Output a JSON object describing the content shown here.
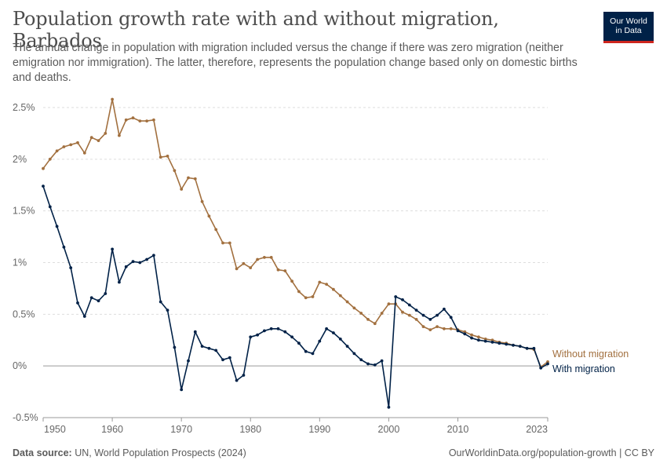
{
  "header": {
    "title": "Population growth rate with and without migration, Barbados",
    "subtitle": "The annual change in population with migration included versus the change if there was zero migration (neither emigration nor immigration). The latter, therefore, represents the population change based only on domestic births and deaths."
  },
  "logo": {
    "line1": "Our World",
    "line2": "in Data",
    "bg_color": "#002147",
    "accent_color": "#ce261e"
  },
  "footer": {
    "source_label": "Data source:",
    "source_text": "UN, World Population Prospects (2024)",
    "credit": "OurWorldinData.org/population-growth | CC BY"
  },
  "chart_data": {
    "type": "line",
    "x_ticks": [
      1950,
      1960,
      1970,
      1980,
      1990,
      2000,
      2010,
      2023
    ],
    "x_tick_labels": [
      "1950",
      "1960",
      "1970",
      "1980",
      "1990",
      "2000",
      "2010",
      "2023"
    ],
    "y_ticks": [
      -0.5,
      0,
      0.5,
      1,
      1.5,
      2,
      2.5
    ],
    "y_tick_labels": [
      "-0.5%",
      "0%",
      "0.5%",
      "1%",
      "1.5%",
      "2%",
      "2.5%"
    ],
    "xlim": [
      1950,
      2023
    ],
    "ylim": [
      -0.5,
      2.5
    ],
    "grid": "horizontal dashed",
    "legend": "line-end labels",
    "series": [
      {
        "name": "Without migration",
        "color": "#a2703f",
        "x": [
          1950,
          1951,
          1952,
          1953,
          1954,
          1955,
          1956,
          1957,
          1958,
          1959,
          1960,
          1961,
          1962,
          1963,
          1964,
          1965,
          1966,
          1967,
          1968,
          1969,
          1970,
          1971,
          1972,
          1973,
          1974,
          1975,
          1976,
          1977,
          1978,
          1979,
          1980,
          1981,
          1982,
          1983,
          1984,
          1985,
          1986,
          1987,
          1988,
          1989,
          1990,
          1991,
          1992,
          1993,
          1994,
          1995,
          1996,
          1997,
          1998,
          1999,
          2000,
          2001,
          2002,
          2003,
          2004,
          2005,
          2006,
          2007,
          2008,
          2009,
          2010,
          2011,
          2012,
          2013,
          2014,
          2015,
          2016,
          2017,
          2018,
          2019,
          2020,
          2021,
          2022,
          2023
        ],
        "values": [
          1.91,
          2.0,
          2.08,
          2.12,
          2.14,
          2.16,
          2.06,
          2.21,
          2.18,
          2.25,
          2.58,
          2.23,
          2.38,
          2.4,
          2.37,
          2.37,
          2.38,
          2.02,
          2.03,
          1.89,
          1.71,
          1.82,
          1.81,
          1.59,
          1.45,
          1.32,
          1.19,
          1.19,
          0.94,
          0.99,
          0.95,
          1.03,
          1.05,
          1.05,
          0.93,
          0.92,
          0.82,
          0.72,
          0.66,
          0.67,
          0.81,
          0.79,
          0.74,
          0.68,
          0.62,
          0.56,
          0.51,
          0.45,
          0.41,
          0.51,
          0.6,
          0.6,
          0.52,
          0.49,
          0.45,
          0.38,
          0.35,
          0.38,
          0.36,
          0.36,
          0.35,
          0.33,
          0.3,
          0.28,
          0.26,
          0.25,
          0.23,
          0.22,
          0.2,
          0.19,
          0.17,
          0.16,
          -0.01,
          0.04
        ]
      },
      {
        "name": "With migration",
        "color": "#002147",
        "x": [
          1950,
          1951,
          1952,
          1953,
          1954,
          1955,
          1956,
          1957,
          1958,
          1959,
          1960,
          1961,
          1962,
          1963,
          1964,
          1965,
          1966,
          1967,
          1968,
          1969,
          1970,
          1971,
          1972,
          1973,
          1974,
          1975,
          1976,
          1977,
          1978,
          1979,
          1980,
          1981,
          1982,
          1983,
          1984,
          1985,
          1986,
          1987,
          1988,
          1989,
          1990,
          1991,
          1992,
          1993,
          1994,
          1995,
          1996,
          1997,
          1998,
          1999,
          2000,
          2001,
          2002,
          2003,
          2004,
          2005,
          2006,
          2007,
          2008,
          2009,
          2010,
          2011,
          2012,
          2013,
          2014,
          2015,
          2016,
          2017,
          2018,
          2019,
          2020,
          2021,
          2022,
          2023
        ],
        "values": [
          1.74,
          1.54,
          1.35,
          1.15,
          0.95,
          0.61,
          0.48,
          0.66,
          0.63,
          0.7,
          1.13,
          0.81,
          0.96,
          1.01,
          1.0,
          1.03,
          1.07,
          0.62,
          0.54,
          0.18,
          -0.23,
          0.05,
          0.33,
          0.19,
          0.17,
          0.15,
          0.06,
          0.08,
          -0.14,
          -0.09,
          0.28,
          0.3,
          0.34,
          0.36,
          0.36,
          0.33,
          0.28,
          0.22,
          0.14,
          0.12,
          0.24,
          0.36,
          0.32,
          0.26,
          0.19,
          0.12,
          0.06,
          0.02,
          0.01,
          0.05,
          -0.4,
          0.67,
          0.64,
          0.59,
          0.54,
          0.49,
          0.45,
          0.49,
          0.55,
          0.47,
          0.34,
          0.31,
          0.27,
          0.25,
          0.24,
          0.23,
          0.22,
          0.21,
          0.2,
          0.19,
          0.17,
          0.17,
          -0.02,
          0.02
        ]
      }
    ]
  }
}
